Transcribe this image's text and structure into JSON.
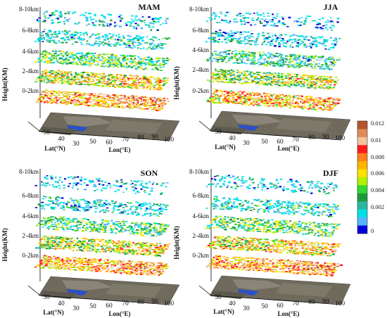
{
  "figure": {
    "panels": [
      {
        "title": "MAM",
        "zlabel": "Height(KM)",
        "xlabel": "Lat(°N)",
        "ylabel": "Lon(°E)"
      },
      {
        "title": "JJA",
        "zlabel": "Height(KM)",
        "xlabel": "Lat(°N)",
        "ylabel": "Lon(°E)"
      },
      {
        "title": "SON",
        "zlabel": "Height(KM)",
        "xlabel": "Lat(°N)",
        "ylabel": "Lon(°E)"
      },
      {
        "title": "DJF",
        "zlabel": "Height(KM)",
        "xlabel": "Lat(°N)",
        "ylabel": "Lon(°E)"
      }
    ],
    "height_levels": [
      "8-10km",
      "6-8km",
      "4-6km",
      "2-4km",
      "0-2km"
    ],
    "lat_ticks": [
      "50",
      "40",
      "30"
    ],
    "lon_ticks": [
      "50",
      "60",
      "70",
      "80",
      "90",
      "100"
    ],
    "colorbar": {
      "ticks": [
        "0.012",
        "0.01",
        "0.008",
        "0.006",
        "0.004",
        "0.002",
        "0"
      ],
      "colors": [
        "#b5542a",
        "#e08a5a",
        "#f2c4a0",
        "#ff1a1a",
        "#ff7f1a",
        "#ffb300",
        "#ffe000",
        "#b0f000",
        "#33d633",
        "#1e9a3a",
        "#2ab7a0",
        "#00e0e8",
        "#56b4ff",
        "#0000dd"
      ]
    }
  },
  "chart_data": {
    "type": "heatmap",
    "panels": [
      "MAM",
      "JJA",
      "SON",
      "DJF"
    ],
    "layers": [
      "8-10km",
      "6-8km",
      "4-6km",
      "2-4km",
      "0-2km"
    ],
    "lat_range": [
      30,
      55
    ],
    "lon_range": [
      45,
      100
    ],
    "value_range": [
      0,
      0.013
    ],
    "colorbar_ticks": [
      0,
      0.002,
      0.004,
      0.006,
      0.008,
      0.01,
      0.012
    ]
  }
}
